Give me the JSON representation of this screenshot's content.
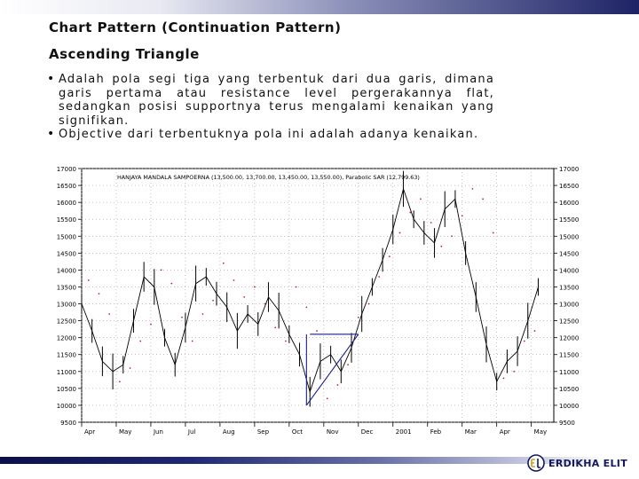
{
  "slide": {
    "title": "Chart Pattern (Continuation Pattern)",
    "subtitle": "Ascending Triangle",
    "bullets": [
      "Adalah pola segi tiga yang terbentuk dari dua garis, dimana garis pertama atau resistance level pergerakannya flat, sedangkan posisi supportnya terus mengalami kenaikan yang signifikan.",
      "Objective dari terbentuknya pola ini adalah adanya kenaikan."
    ]
  },
  "footer": {
    "brand_text": "ERDIKHA ELIT",
    "brand_color": "#14195c",
    "band_color": "#1e2366"
  },
  "chart_data": {
    "type": "line",
    "title": "HANJAYA MANDALA SAMPOERNA (13,500.00, 13,700.00, 13,450.00, 13,550.00), Parabolic SAR (12,799.63)",
    "y_ticks": [
      9500,
      10000,
      10500,
      11000,
      11500,
      12000,
      12500,
      13000,
      13500,
      14000,
      14500,
      15000,
      15500,
      16000,
      16500,
      17000
    ],
    "ylim": [
      9500,
      17000
    ],
    "x_month_labels": [
      "Apr",
      "May",
      "Jun",
      "Jul",
      "Aug",
      "Sep",
      "Oct",
      "Nov",
      "Dec",
      "2001",
      "Feb",
      "Mar",
      "Apr",
      "May"
    ],
    "grid": true,
    "series": [
      {
        "kind": "price",
        "color": "#000000",
        "x": [
          0,
          0.3,
          0.6,
          0.9,
          1.2,
          1.5,
          1.8,
          2.1,
          2.4,
          2.7,
          3.0,
          3.3,
          3.6,
          3.9,
          4.2,
          4.5,
          4.8,
          5.1,
          5.4,
          5.7,
          6.0,
          6.3,
          6.6,
          6.9,
          7.2,
          7.5,
          7.8,
          8.1,
          8.4,
          8.7,
          9.0,
          9.3,
          9.6,
          9.9,
          10.2,
          10.5,
          10.8,
          11.1,
          11.4,
          11.7,
          12.0,
          12.3,
          12.6,
          12.9,
          13.2
        ],
        "values": [
          13000,
          12200,
          11300,
          11000,
          11200,
          12500,
          13800,
          13500,
          12000,
          11200,
          12300,
          13600,
          13800,
          13300,
          12900,
          12200,
          12700,
          12400,
          13200,
          12800,
          12100,
          11500,
          10400,
          11300,
          11500,
          11000,
          11700,
          12700,
          13500,
          14300,
          15200,
          16400,
          15500,
          15100,
          14800,
          15800,
          16100,
          14500,
          13200,
          11800,
          10700,
          11300,
          11600,
          12500,
          13500
        ]
      },
      {
        "kind": "parabolic_sar",
        "color": "#c0282e",
        "x": [
          0.2,
          0.5,
          0.8,
          1.1,
          1.4,
          1.7,
          2.0,
          2.3,
          2.6,
          2.9,
          3.2,
          3.5,
          3.8,
          4.1,
          4.4,
          4.7,
          5.0,
          5.3,
          5.6,
          5.9,
          6.2,
          6.5,
          6.8,
          7.1,
          7.4,
          7.7,
          8.0,
          8.3,
          8.6,
          8.9,
          9.2,
          9.5,
          9.8,
          10.1,
          10.4,
          10.7,
          11.0,
          11.3,
          11.6,
          11.9,
          12.2,
          12.5,
          12.8,
          13.1
        ],
        "values": [
          13700,
          13300,
          12700,
          10700,
          11100,
          11900,
          12400,
          14000,
          13600,
          12600,
          11900,
          12700,
          13100,
          14200,
          13700,
          13200,
          13500,
          13000,
          12300,
          11900,
          13500,
          12900,
          12200,
          10200,
          10600,
          11200,
          12600,
          13000,
          13800,
          14400,
          15100,
          15700,
          16100,
          15400,
          14700,
          15000,
          15600,
          16400,
          16100,
          15100,
          10800,
          11000,
          11900,
          12200
        ]
      }
    ],
    "annotations": [
      {
        "kind": "resistance",
        "label": "",
        "from": {
          "x": 6.6,
          "y": 12100
        },
        "to": {
          "x": 8.0,
          "y": 12100
        }
      },
      {
        "kind": "support",
        "label": "",
        "from": {
          "x": 6.5,
          "y": 10000
        },
        "to": {
          "x": 8.0,
          "y": 12100
        }
      },
      {
        "kind": "left-edge",
        "label": "",
        "from": {
          "x": 6.5,
          "y": 12100
        },
        "to": {
          "x": 6.5,
          "y": 10000
        }
      }
    ]
  }
}
